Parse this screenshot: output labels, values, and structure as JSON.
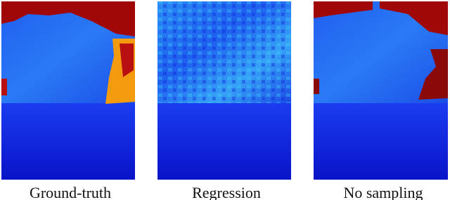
{
  "figure": {
    "panels": [
      {
        "caption": "Ground-truth"
      },
      {
        "caption": "Regression"
      },
      {
        "caption": "No sampling"
      }
    ]
  }
}
